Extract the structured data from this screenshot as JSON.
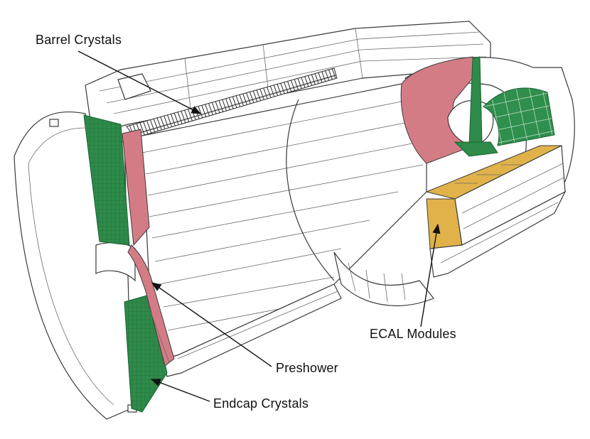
{
  "colors": {
    "crystal": "#2e8b4a",
    "preshower": "#d47c86",
    "module": "#e1b24a",
    "outline": "#3a3a3a"
  },
  "labels": {
    "barrel": "Barrel Crystals",
    "preshower": "Preshower",
    "endcap": "Endcap Crystals",
    "modules": "ECAL Modules"
  }
}
